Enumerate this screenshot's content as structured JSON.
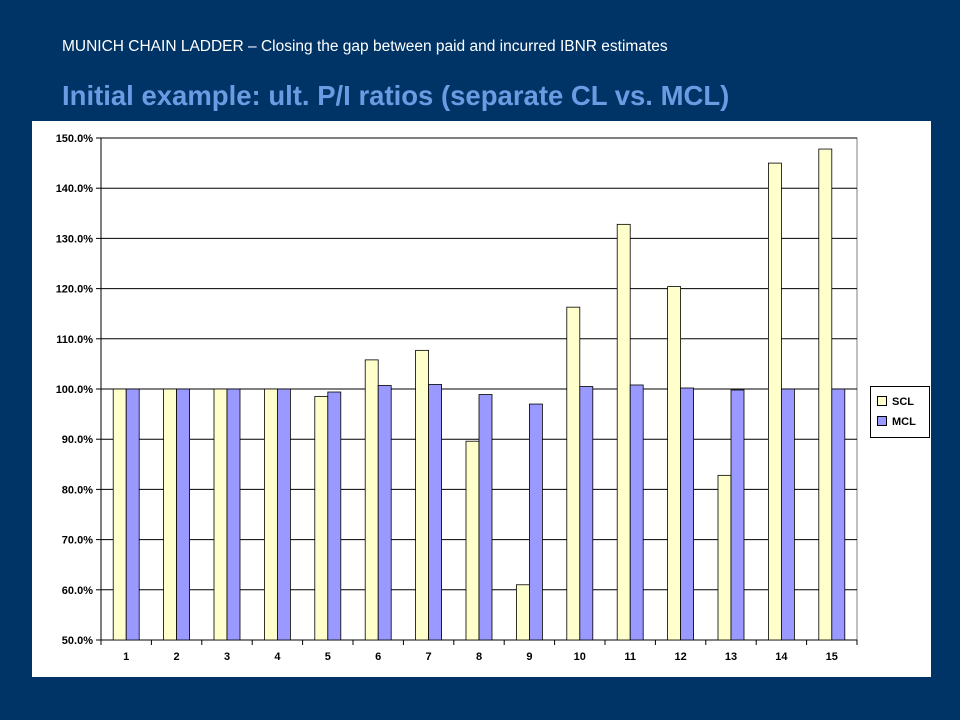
{
  "slide": {
    "subtitle": "MUNICH CHAIN LADDER – Closing the gap between paid and incurred IBNR estimates",
    "title": "Initial example: ult. P/I ratios (separate CL vs. MCL)"
  },
  "chart_data": {
    "type": "bar",
    "categories": [
      "1",
      "2",
      "3",
      "4",
      "5",
      "6",
      "7",
      "8",
      "9",
      "10",
      "11",
      "12",
      "13",
      "14",
      "15"
    ],
    "series": [
      {
        "name": "SCL",
        "color": "#ffffcc",
        "values": [
          100.0,
          100.0,
          100.0,
          100.0,
          98.5,
          105.8,
          107.7,
          89.6,
          61.0,
          116.3,
          132.8,
          120.4,
          82.8,
          145.0,
          147.8
        ]
      },
      {
        "name": "MCL",
        "color": "#9999ff",
        "values": [
          100.0,
          100.0,
          100.0,
          100.0,
          99.4,
          100.7,
          100.9,
          98.9,
          97.0,
          100.5,
          100.8,
          100.2,
          99.8,
          100.0,
          100.0
        ]
      }
    ],
    "yticks": [
      "150.0%",
      "140.0%",
      "130.0%",
      "120.0%",
      "110.0%",
      "100.0%",
      "90.0%",
      "80.0%",
      "70.0%",
      "60.0%",
      "50.0%"
    ],
    "ylim": [
      50,
      150
    ],
    "grid": true,
    "legend_position": "right"
  }
}
